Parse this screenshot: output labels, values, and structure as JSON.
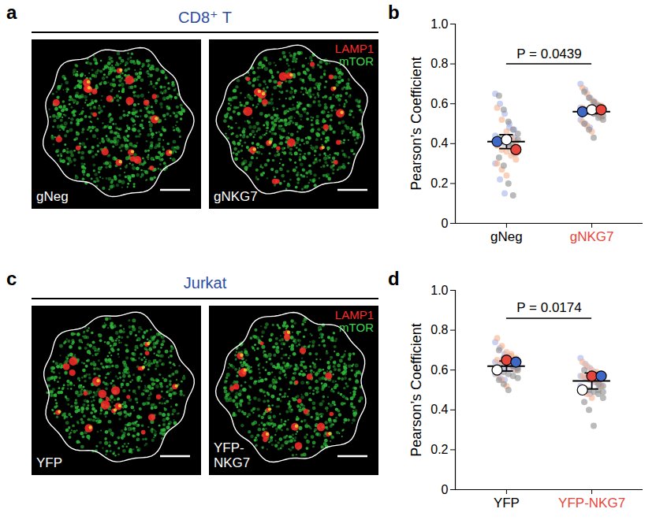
{
  "image_panels": [
    {
      "letter": "a",
      "title": "CD8⁺ T",
      "channels": [
        {
          "name": "LAMP1",
          "color": "#ff2a2a"
        },
        {
          "name": "mTOR",
          "color": "#3dd64a"
        }
      ],
      "images": [
        "gNeg",
        "gNKG7"
      ]
    },
    {
      "letter": "c",
      "title": "Jurkat",
      "channels": [
        {
          "name": "LAMP1",
          "color": "#ff2a2a"
        },
        {
          "name": "mTOR",
          "color": "#3dd64a"
        }
      ],
      "images": [
        "YFP",
        "YFP-NKG7"
      ]
    }
  ],
  "chart_data": [
    {
      "letter": "b",
      "type": "scatter",
      "categories": [
        "gNeg",
        "gNKG7"
      ],
      "ylabel": "Pearson’s Coefficient",
      "ylim": [
        0,
        1
      ],
      "yticks": [
        0,
        0.2,
        0.4,
        0.6,
        0.8,
        {
          "value": 1,
          "label": "1.0"
        }
      ],
      "annotation": "P = 0.0439",
      "series": [
        {
          "color": "#a6b4e8",
          "values": [
            [
              0.65,
              0.6,
              0.55,
              0.5,
              0.47,
              0.44,
              0.42,
              0.4,
              0.38,
              0.35,
              0.3,
              0.22,
              0.15,
              0.48,
              0.43
            ],
            [
              0.7,
              0.67,
              0.63,
              0.61,
              0.59,
              0.58,
              0.57,
              0.56,
              0.55,
              0.54,
              0.52,
              0.5,
              0.48,
              0.6,
              0.57
            ]
          ]
        },
        {
          "color": "#f5b08c",
          "values": [
            [
              0.58,
              0.52,
              0.46,
              0.43,
              0.41,
              0.39,
              0.37,
              0.36,
              0.34,
              0.32,
              0.3,
              0.27,
              0.24,
              0.38,
              0.35
            ],
            [
              0.68,
              0.65,
              0.62,
              0.6,
              0.59,
              0.58,
              0.57,
              0.56,
              0.55,
              0.53,
              0.51,
              0.49,
              0.46,
              0.57,
              0.55
            ]
          ]
        },
        {
          "color": "#8c8c8c",
          "values": [
            [
              0.64,
              0.57,
              0.51,
              0.47,
              0.45,
              0.43,
              0.41,
              0.4,
              0.39,
              0.36,
              0.33,
              0.29,
              0.2,
              0.14,
              0.42
            ],
            [
              0.66,
              0.63,
              0.61,
              0.59,
              0.58,
              0.57,
              0.56,
              0.55,
              0.53,
              0.52,
              0.5,
              0.47,
              0.43,
              0.56,
              0.54
            ]
          ]
        }
      ],
      "replicate_means": [
        {
          "color": "#3e67c6",
          "values": [
            0.41,
            0.56
          ]
        },
        {
          "color": "#ffffff",
          "values": [
            0.42,
            0.57
          ]
        },
        {
          "color": "#e8453c",
          "values": [
            0.37,
            0.57
          ]
        }
      ],
      "means": [
        0.41,
        0.56
      ],
      "errors": [
        0.035,
        0.01
      ]
    },
    {
      "letter": "d",
      "type": "scatter",
      "categories": [
        "YFP",
        "YFP-NKG7"
      ],
      "ylabel": "Pearson’s Coefficient",
      "ylim": [
        0,
        1
      ],
      "yticks": [
        0,
        0.2,
        0.4,
        0.6,
        0.8,
        {
          "value": 1,
          "label": "1.0"
        }
      ],
      "annotation": "P = 0.0174",
      "series": [
        {
          "color": "#a6b4e8",
          "values": [
            [
              0.74,
              0.71,
              0.68,
              0.66,
              0.65,
              0.64,
              0.63,
              0.62,
              0.61,
              0.6,
              0.58,
              0.56,
              0.55,
              0.67,
              0.63
            ],
            [
              0.66,
              0.63,
              0.61,
              0.59,
              0.58,
              0.57,
              0.56,
              0.55,
              0.54,
              0.53,
              0.52,
              0.5,
              0.48,
              0.58,
              0.56
            ]
          ]
        },
        {
          "color": "#f5b08c",
          "values": [
            [
              0.76,
              0.72,
              0.69,
              0.67,
              0.66,
              0.65,
              0.64,
              0.63,
              0.62,
              0.6,
              0.58,
              0.55,
              0.52,
              0.68,
              0.64
            ],
            [
              0.64,
              0.62,
              0.6,
              0.59,
              0.58,
              0.57,
              0.56,
              0.55,
              0.54,
              0.52,
              0.5,
              0.48,
              0.46,
              0.57,
              0.55
            ]
          ]
        },
        {
          "color": "#8c8c8c",
          "values": [
            [
              0.7,
              0.66,
              0.64,
              0.62,
              0.61,
              0.6,
              0.59,
              0.58,
              0.57,
              0.56,
              0.55,
              0.53,
              0.5,
              0.62,
              0.6
            ],
            [
              0.6,
              0.57,
              0.55,
              0.53,
              0.52,
              0.51,
              0.5,
              0.49,
              0.48,
              0.46,
              0.44,
              0.4,
              0.32,
              0.5,
              0.49
            ]
          ]
        }
      ],
      "replicate_means": [
        {
          "color": "#ffffff",
          "values": [
            0.6,
            0.5
          ]
        },
        {
          "color": "#e8453c",
          "values": [
            0.65,
            0.57
          ]
        },
        {
          "color": "#3e67c6",
          "values": [
            0.64,
            0.57
          ]
        }
      ],
      "means": [
        0.62,
        0.545
      ],
      "errors": [
        0.025,
        0.04
      ]
    }
  ]
}
